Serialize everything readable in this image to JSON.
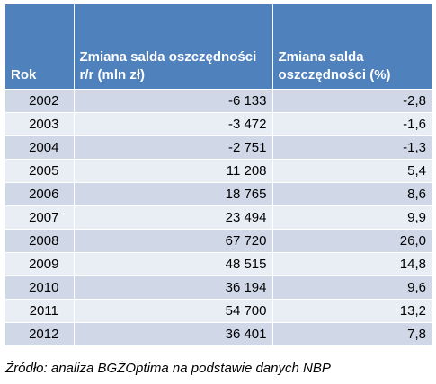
{
  "table": {
    "headers": {
      "year": "Rok",
      "change_abs": "Zmiana salda oszczędności r/r (mln zł)",
      "change_pct": "Zmiana salda oszczędności (%)"
    },
    "rows": [
      {
        "year": "2002",
        "change_abs": "-6 133",
        "change_pct": "-2,8"
      },
      {
        "year": "2003",
        "change_abs": "-3 472",
        "change_pct": "-1,6"
      },
      {
        "year": "2004",
        "change_abs": "-2 751",
        "change_pct": "-1,3"
      },
      {
        "year": "2005",
        "change_abs": "11 208",
        "change_pct": "5,4"
      },
      {
        "year": "2006",
        "change_abs": "18 765",
        "change_pct": "8,6"
      },
      {
        "year": "2007",
        "change_abs": "23 494",
        "change_pct": "9,9"
      },
      {
        "year": "2008",
        "change_abs": "67 720",
        "change_pct": "26,0"
      },
      {
        "year": "2009",
        "change_abs": "48 515",
        "change_pct": "14,8"
      },
      {
        "year": "2010",
        "change_abs": "36 194",
        "change_pct": "9,6"
      },
      {
        "year": "2011",
        "change_abs": "54 700",
        "change_pct": "13,2"
      },
      {
        "year": "2012",
        "change_abs": "36 401",
        "change_pct": "7,8"
      }
    ]
  },
  "source": "Źródło: analiza BGŻOptima na podstawie danych NBP",
  "colors": {
    "header_bg": "#4f81bd",
    "header_text": "#ffffff",
    "row_dark": "#d0d8e8",
    "row_light": "#e9edf4"
  }
}
